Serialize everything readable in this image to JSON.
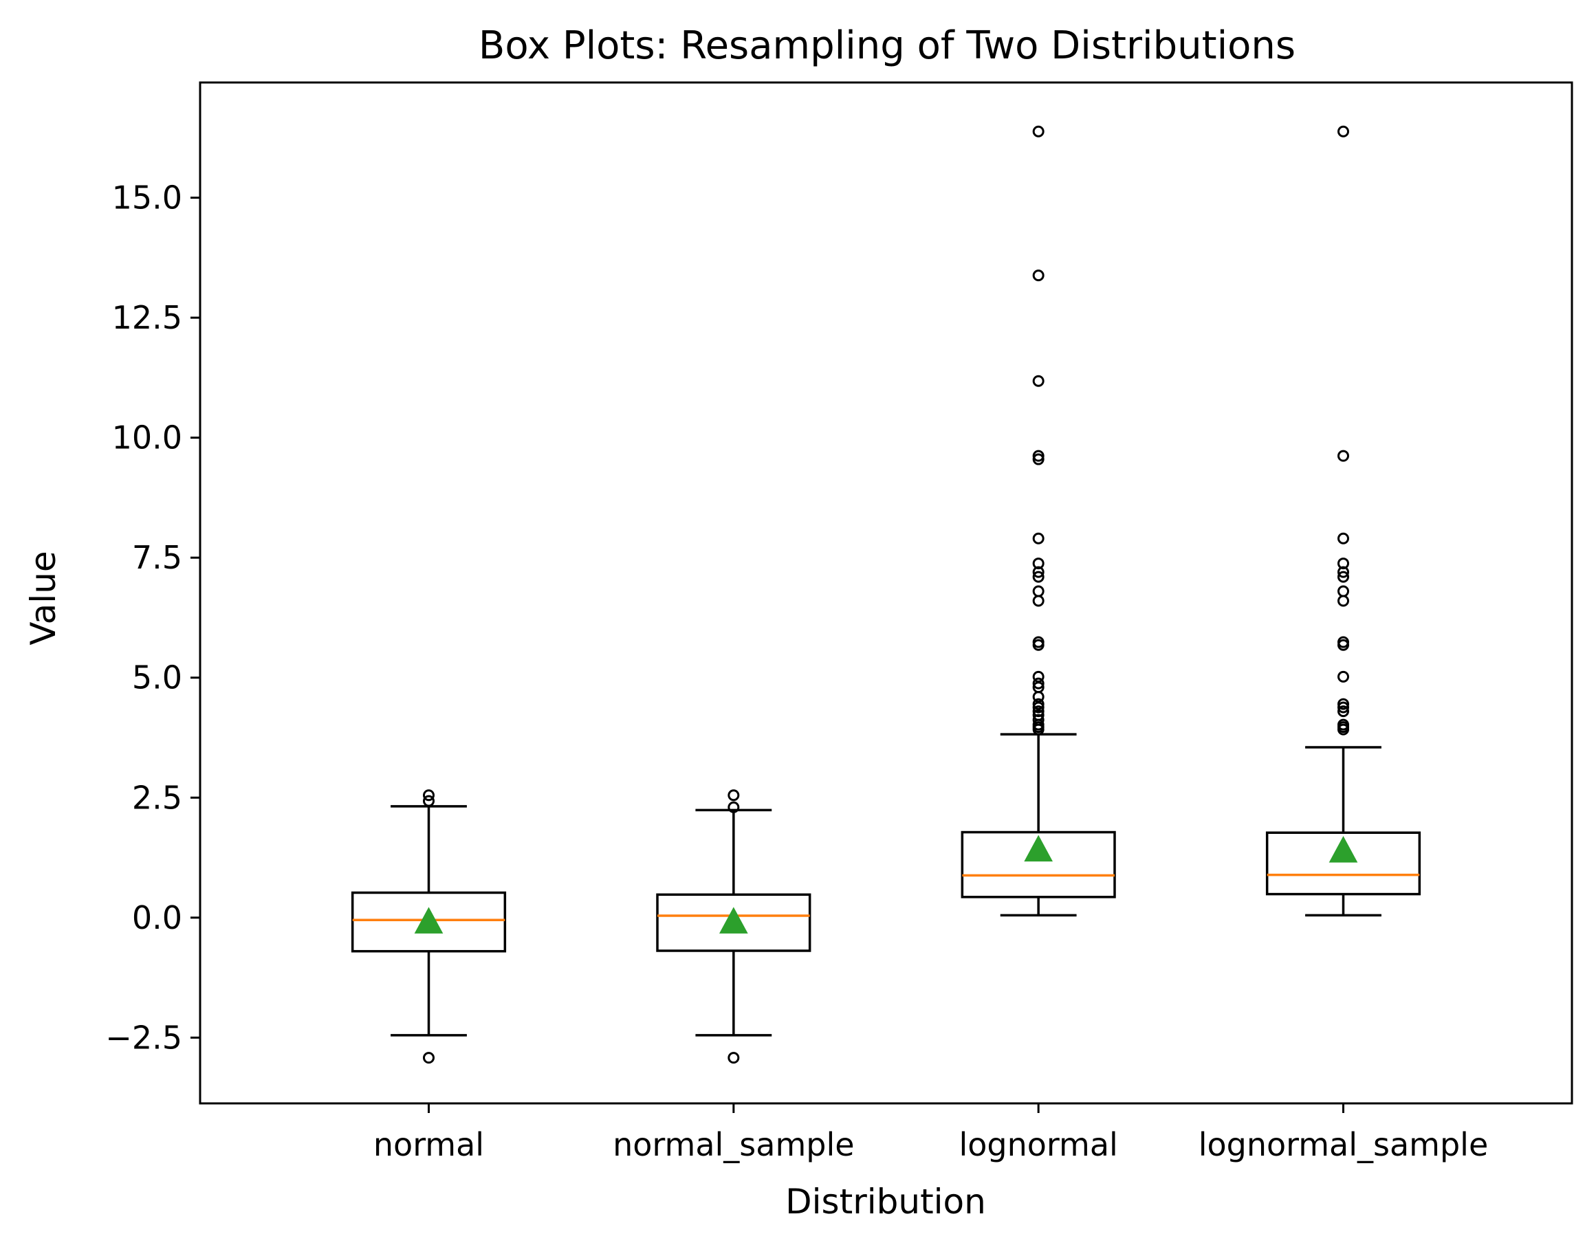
{
  "chart_data": {
    "type": "box",
    "title": "Box Plots: Resampling of Two Distributions",
    "xlabel": "Distribution",
    "ylabel": "Value",
    "ylim": [
      -3.87,
      17.4
    ],
    "yticks": [
      -2.5,
      0.0,
      2.5,
      5.0,
      7.5,
      10.0,
      12.5,
      15.0
    ],
    "ytick_labels": [
      "−2.5",
      "0.0",
      "2.5",
      "5.0",
      "7.5",
      "10.0",
      "12.5",
      "15.0"
    ],
    "categories": [
      "normal",
      "normal_sample",
      "lognormal",
      "lognormal_sample"
    ],
    "grid": false,
    "show_means": true,
    "colors": {
      "box": "#000000",
      "median": "#ff7f0e",
      "mean": "#2ca02c",
      "flier": "#000000"
    },
    "boxes": [
      {
        "label": "normal",
        "whislo": -2.45,
        "q1": -0.7,
        "median": -0.05,
        "q3": 0.52,
        "whishi": 2.32,
        "mean": -0.08,
        "fliers": [
          -2.92,
          2.43,
          2.55
        ]
      },
      {
        "label": "normal_sample",
        "whislo": -2.45,
        "q1": -0.69,
        "median": 0.04,
        "q3": 0.48,
        "whishi": 2.24,
        "mean": -0.08,
        "fliers": [
          -2.92,
          2.3,
          2.55
        ]
      },
      {
        "label": "lognormal",
        "whislo": 0.05,
        "q1": 0.43,
        "median": 0.88,
        "q3": 1.78,
        "whishi": 3.82,
        "mean": 1.42,
        "fliers": [
          3.92,
          3.97,
          4.02,
          4.12,
          4.22,
          4.3,
          4.38,
          4.45,
          4.6,
          4.8,
          4.88,
          5.02,
          5.68,
          5.74,
          6.6,
          6.8,
          7.1,
          7.2,
          7.38,
          7.9,
          9.55,
          9.62,
          11.18,
          13.38,
          16.38
        ]
      },
      {
        "label": "lognormal_sample",
        "whislo": 0.05,
        "q1": 0.49,
        "median": 0.89,
        "q3": 1.77,
        "whishi": 3.55,
        "mean": 1.4,
        "fliers": [
          3.92,
          3.97,
          4.02,
          4.3,
          4.38,
          4.45,
          5.02,
          5.68,
          5.74,
          6.6,
          6.8,
          7.1,
          7.2,
          7.38,
          7.9,
          9.62,
          16.38
        ]
      }
    ]
  }
}
